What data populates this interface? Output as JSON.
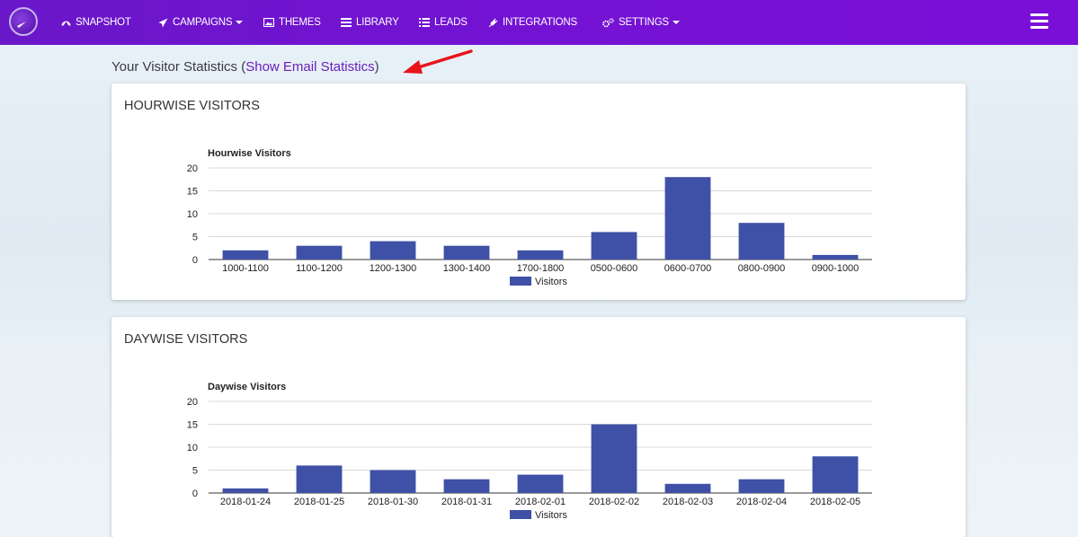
{
  "nav": {
    "items": [
      {
        "label": "SNAPSHOT",
        "icon": "dashboard-icon",
        "dropdown": false
      },
      {
        "label": "CAMPAIGNS",
        "icon": "paper-plane-icon",
        "dropdown": true
      },
      {
        "label": "THEMES",
        "icon": "image-icon",
        "dropdown": false
      },
      {
        "label": "LIBRARY",
        "icon": "list-icon",
        "dropdown": false
      },
      {
        "label": "LEADS",
        "icon": "list-icon",
        "dropdown": false
      },
      {
        "label": "INTEGRATIONS",
        "icon": "plug-icon",
        "dropdown": false
      },
      {
        "label": "SETTINGS",
        "icon": "gears-icon",
        "dropdown": true
      }
    ]
  },
  "heading": {
    "prefix": "Your Visitor Statistics (",
    "link": "Show Email Statistics",
    "suffix": ")"
  },
  "colors": {
    "nav_bg": "#7412d3",
    "bar": "#3f51a7",
    "link": "#6a1fb8",
    "arrow": "#e8141a"
  },
  "cards": [
    {
      "title": "HOURWISE VISITORS"
    },
    {
      "title": "DAYWISE VISITORS"
    }
  ],
  "chart_data": [
    {
      "type": "bar",
      "title": "Hourwise Visitors",
      "categories": [
        "1000-1100",
        "1100-1200",
        "1200-1300",
        "1300-1400",
        "1700-1800",
        "0500-0600",
        "0600-0700",
        "0800-0900",
        "0900-1000"
      ],
      "series": [
        {
          "name": "Visitors",
          "values": [
            2,
            3,
            4,
            3,
            2,
            6,
            18,
            8,
            1
          ]
        }
      ],
      "yticks": [
        "0",
        "5",
        "10",
        "15",
        "20"
      ],
      "ylim": [
        0,
        20
      ],
      "grid": true,
      "legend": "bottom"
    },
    {
      "type": "bar",
      "title": "Daywise Visitors",
      "categories": [
        "2018-01-24",
        "2018-01-25",
        "2018-01-30",
        "2018-01-31",
        "2018-02-01",
        "2018-02-02",
        "2018-02-03",
        "2018-02-04",
        "2018-02-05"
      ],
      "series": [
        {
          "name": "Visitors",
          "values": [
            1,
            6,
            5,
            3,
            4,
            15,
            2,
            3,
            8
          ]
        }
      ],
      "yticks": [
        "0",
        "5",
        "10",
        "15",
        "20"
      ],
      "ylim": [
        0,
        20
      ],
      "grid": true,
      "legend": "bottom"
    }
  ]
}
